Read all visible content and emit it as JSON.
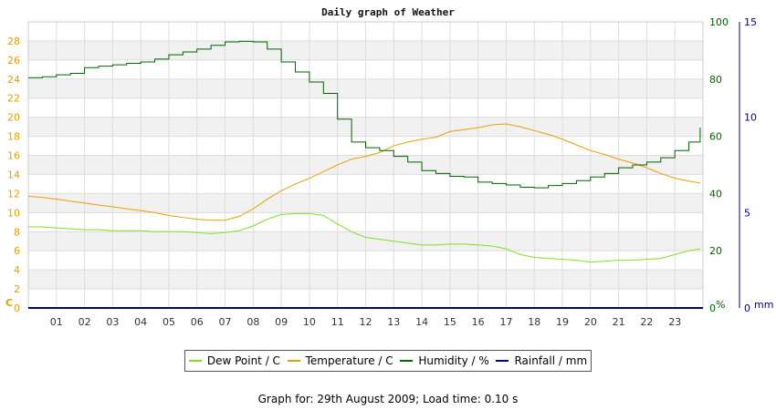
{
  "chart_data": {
    "type": "line",
    "title": "Daily graph of Weather",
    "x_ticks": [
      "01",
      "02",
      "03",
      "04",
      "05",
      "06",
      "07",
      "08",
      "09",
      "10",
      "11",
      "12",
      "13",
      "14",
      "15",
      "16",
      "17",
      "18",
      "19",
      "20",
      "21",
      "22",
      "23"
    ],
    "xlim": [
      0,
      24
    ],
    "left_axis": {
      "unit_label": "C",
      "ticks": [
        0,
        2,
        4,
        6,
        8,
        10,
        12,
        14,
        16,
        18,
        20,
        22,
        24,
        26,
        28
      ],
      "ylim": [
        0,
        30
      ],
      "color": "#e8a000"
    },
    "right_axis_humidity": {
      "unit_label": "%",
      "ticks": [
        0,
        20,
        40,
        60,
        80,
        100
      ],
      "ylim": [
        0,
        100
      ],
      "color": "#006400"
    },
    "right_axis_rainfall": {
      "unit_label": "mm",
      "ticks": [
        0,
        5,
        10,
        15
      ],
      "ylim": [
        0,
        15
      ],
      "color": "#00008b"
    },
    "series": [
      {
        "name": "Dew Point / C",
        "axis": "left",
        "color": "#80e020",
        "x": [
          0,
          0.5,
          1,
          1.5,
          2,
          2.5,
          3,
          3.5,
          4,
          4.5,
          5,
          5.5,
          6,
          6.5,
          7,
          7.5,
          8,
          8.5,
          9,
          9.5,
          10,
          10.5,
          11,
          11.5,
          12,
          12.5,
          13,
          13.5,
          14,
          14.5,
          15,
          15.5,
          16,
          16.5,
          17,
          17.5,
          18,
          18.5,
          19,
          19.5,
          20,
          20.5,
          21,
          21.5,
          22,
          22.5,
          23,
          23.5,
          23.9
        ],
        "values": [
          8.5,
          8.5,
          8.4,
          8.3,
          8.2,
          8.2,
          8.1,
          8.1,
          8.1,
          8.0,
          8.0,
          8.0,
          7.9,
          7.8,
          7.9,
          8.1,
          8.6,
          9.3,
          9.8,
          9.9,
          9.9,
          9.7,
          8.8,
          8.0,
          7.4,
          7.2,
          7.0,
          6.8,
          6.6,
          6.6,
          6.7,
          6.7,
          6.6,
          6.5,
          6.2,
          5.6,
          5.3,
          5.2,
          5.1,
          5.0,
          4.8,
          4.9,
          5.0,
          5.0,
          5.1,
          5.2,
          5.6,
          6.0,
          6.2
        ]
      },
      {
        "name": "Temperature / C",
        "axis": "left",
        "color": "#e8a000",
        "x": [
          0,
          0.5,
          1,
          1.5,
          2,
          2.5,
          3,
          3.5,
          4,
          4.5,
          5,
          5.5,
          6,
          6.5,
          7,
          7.5,
          8,
          8.5,
          9,
          9.5,
          10,
          10.5,
          11,
          11.5,
          12,
          12.5,
          13,
          13.5,
          14,
          14.5,
          15,
          15.5,
          16,
          16.5,
          17,
          17.5,
          18,
          18.5,
          19,
          19.5,
          20,
          20.5,
          21,
          21.5,
          22,
          22.5,
          23,
          23.5,
          23.9
        ],
        "values": [
          11.7,
          11.6,
          11.4,
          11.2,
          11.0,
          10.8,
          10.6,
          10.4,
          10.2,
          10.0,
          9.7,
          9.5,
          9.3,
          9.2,
          9.2,
          9.6,
          10.4,
          11.4,
          12.3,
          13.0,
          13.6,
          14.3,
          15.0,
          15.6,
          15.9,
          16.3,
          17.0,
          17.4,
          17.7,
          17.9,
          18.5,
          18.7,
          18.9,
          19.2,
          19.3,
          19.0,
          18.6,
          18.2,
          17.7,
          17.1,
          16.5,
          16.1,
          15.6,
          15.2,
          14.7,
          14.1,
          13.6,
          13.3,
          13.1
        ]
      },
      {
        "name": "Humidity / %",
        "axis": "right",
        "color": "#006400",
        "x": [
          0,
          0.5,
          1,
          1.5,
          2,
          2.5,
          3,
          3.5,
          4,
          4.5,
          5,
          5.5,
          6,
          6.5,
          7,
          7.5,
          8,
          8.5,
          9,
          9.5,
          10,
          10.5,
          11,
          11.5,
          12,
          12.5,
          13,
          13.5,
          14,
          14.5,
          15,
          15.5,
          16,
          16.5,
          17,
          17.5,
          18,
          18.5,
          19,
          19.5,
          20,
          20.5,
          21,
          21.5,
          22,
          22.5,
          23,
          23.5,
          23.9
        ],
        "values": [
          80.5,
          80.8,
          81.5,
          82,
          84,
          84.5,
          85,
          85.5,
          86,
          87,
          88.5,
          89.5,
          90.5,
          91.8,
          93,
          93.2,
          93,
          90.5,
          86,
          82.5,
          79,
          75,
          66,
          58,
          56,
          55,
          53,
          51,
          48,
          47,
          46,
          45.8,
          44,
          43.5,
          43,
          42.2,
          42,
          42.8,
          43.5,
          44.5,
          45.8,
          47,
          49,
          50,
          51,
          52.5,
          55,
          58,
          63
        ]
      },
      {
        "name": "Rainfall / mm",
        "axis": "right_rain",
        "color": "#00008b",
        "x": [
          0,
          24
        ],
        "values": [
          0,
          0
        ]
      }
    ],
    "grid": true,
    "legend": "bottom-center"
  },
  "footer": "Graph for: 29th August 2009; Load time: 0.10 s"
}
